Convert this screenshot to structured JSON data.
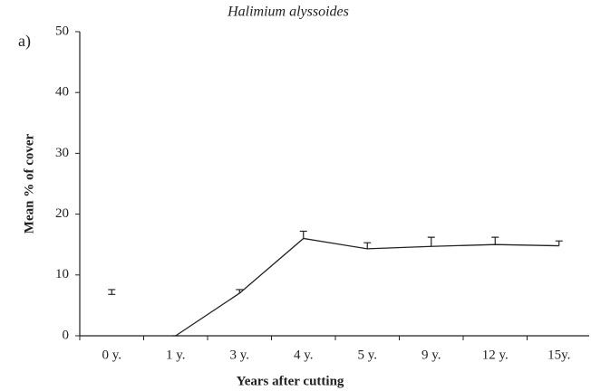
{
  "chart_data": {
    "type": "line",
    "title": "Halimium alyssoides",
    "panel_label": "a)",
    "x_label": "Years after cutting",
    "y_label": "Mean % of cover",
    "categories": [
      "0 y.",
      "1 y.",
      "3 y.",
      "4 y.",
      "5 y.",
      "9 y.",
      "12 y.",
      "15y."
    ],
    "series": [
      {
        "color": "#222222",
        "values": [
          7.2,
          null,
          null,
          null,
          null,
          null,
          null,
          null
        ],
        "errors": [
          0.4,
          null,
          null,
          null,
          null,
          null,
          null,
          null
        ]
      },
      {
        "color": "#222222",
        "values": [
          null,
          0,
          7,
          16,
          14.3,
          14.7,
          15,
          14.8
        ],
        "errors": [
          null,
          0,
          0.6,
          1.2,
          1,
          1.5,
          1.2,
          0.8
        ]
      }
    ],
    "ylim": [
      0,
      50
    ],
    "yticks": [
      0,
      10,
      20,
      30,
      40,
      50
    ],
    "grid": false
  }
}
